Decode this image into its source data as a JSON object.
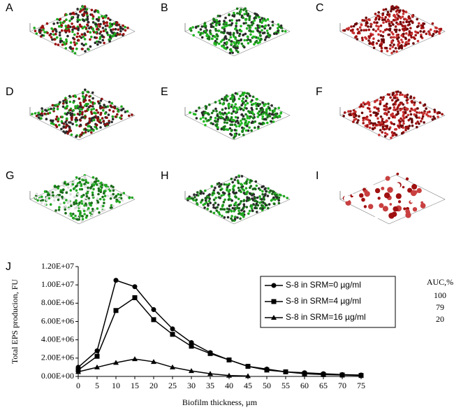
{
  "panels": [
    {
      "label": "A",
      "colors": [
        "#1fa81f",
        "#9b1010",
        "#2a2a2a"
      ]
    },
    {
      "label": "B",
      "colors": [
        "#22b822",
        "#1a7a1a",
        "#2a2a2a"
      ]
    },
    {
      "label": "C",
      "colors": [
        "#a01010",
        "#6a0808",
        "#c83030"
      ]
    },
    {
      "label": "D",
      "colors": [
        "#1fa81f",
        "#8a1010",
        "#2a2a2a"
      ]
    },
    {
      "label": "E",
      "colors": [
        "#22b822",
        "#1a7a1a",
        "#2a2a2a"
      ]
    },
    {
      "label": "F",
      "colors": [
        "#a01010",
        "#6a0808",
        "#c83030"
      ]
    },
    {
      "label": "G",
      "colors": [
        "#22a822",
        "#1a6a1a",
        "#dddddd"
      ]
    },
    {
      "label": "H",
      "colors": [
        "#22a822",
        "#1a6a1a",
        "#2a2a2a"
      ]
    },
    {
      "label": "I",
      "colors": [
        "#a01010",
        "#c84040",
        "#ffffff"
      ]
    }
  ],
  "chart_label": "J",
  "chart_data": {
    "type": "line",
    "x_label": "Biofilm thickness, µm",
    "y_label": "Total EPS producion, FU",
    "x": [
      0,
      5,
      10,
      15,
      20,
      25,
      30,
      35,
      40,
      45,
      50,
      55,
      60,
      65,
      70,
      75
    ],
    "xlim": [
      0,
      75
    ],
    "xticks": [
      0,
      5,
      10,
      15,
      20,
      25,
      30,
      35,
      40,
      45,
      50,
      55,
      60,
      65,
      70,
      75
    ],
    "ylim": [
      0,
      12000000
    ],
    "yticks": [
      {
        "value": 0,
        "label": "0.00E+00"
      },
      {
        "value": 2000000,
        "label": "2.00E+06"
      },
      {
        "value": 4000000,
        "label": "4.00E+06"
      },
      {
        "value": 6000000,
        "label": "6.00E+06"
      },
      {
        "value": 8000000,
        "label": "8.00E+06"
      },
      {
        "value": 10000000,
        "label": "1.00E+07"
      },
      {
        "value": 12000000,
        "label": "1.20E+07"
      }
    ],
    "series": [
      {
        "name": "S-8 in SRM=0 µg/ml",
        "color": "#000000",
        "marker": "circle",
        "values": [
          1000000,
          2800000,
          10500000,
          9800000,
          7300000,
          5200000,
          3700000,
          2600000,
          1800000,
          1100000,
          800000,
          500000,
          400000,
          300000,
          200000,
          150000
        ]
      },
      {
        "name": "S-8 in SRM=4 µg/ml",
        "color": "#000000",
        "marker": "square",
        "values": [
          700000,
          2200000,
          7200000,
          8600000,
          6200000,
          4600000,
          3300000,
          2500000,
          1800000,
          1100000,
          700000,
          500000,
          300000,
          200000,
          150000,
          100000
        ]
      },
      {
        "name": "S-8 in SRM=16 µg/ml",
        "color": "#000000",
        "marker": "triangle",
        "values": [
          500000,
          1000000,
          1500000,
          1900000,
          1600000,
          1000000,
          600000,
          300000,
          100000,
          50000,
          null,
          null,
          null,
          null,
          null,
          null
        ]
      }
    ],
    "legend": "upper right",
    "auc": {
      "title": "AUC,%",
      "values": [
        100,
        79,
        20
      ]
    }
  }
}
